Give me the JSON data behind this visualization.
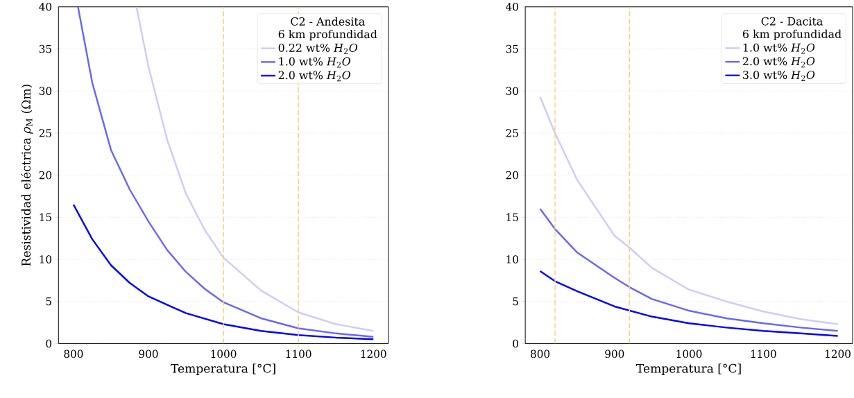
{
  "chart_data": [
    {
      "type": "line",
      "xlabel": "Temperatura [°C]",
      "ylabel": "Resistividad eléctrica *ρ*$_{M}$ (Ωm)",
      "legend_title": "C2 - Andesita\n6 km profundidad",
      "legend": "top right",
      "grid": "y",
      "xlim": [
        780,
        1220
      ],
      "ylim": [
        0,
        40
      ],
      "xticks": [
        800,
        900,
        1000,
        1100,
        1200
      ],
      "yticks": [
        0,
        5,
        10,
        15,
        20,
        25,
        30,
        35,
        40
      ],
      "ref_lines": [
        {
          "axis": "x",
          "value": 1000,
          "color": "#ffcf7a",
          "line_style": "dashed"
        },
        {
          "axis": "x",
          "value": 1100,
          "color": "#ffcf7a",
          "line_style": "dashed"
        }
      ],
      "series": [
        {
          "name": "0.22 wt% *H*$_{2}$*O*",
          "color": "#ccccff",
          "x": [
            884,
            900,
            925,
            950,
            975,
            1000,
            1050,
            1100,
            1150,
            1200
          ],
          "values": [
            40,
            32.9,
            24.2,
            17.8,
            13.5,
            10.2,
            6.3,
            3.7,
            2.3,
            1.5
          ]
        },
        {
          "name": "1.0 wt% *H*$_{2}$*O*",
          "color": "#6666ff",
          "x": [
            806,
            825,
            850,
            875,
            900,
            925,
            950,
            975,
            1000,
            1050,
            1100,
            1150,
            1200
          ],
          "values": [
            40,
            31,
            23,
            18.3,
            14.5,
            11.1,
            8.5,
            6.5,
            4.9,
            3.0,
            1.8,
            1.2,
            0.8
          ]
        },
        {
          "name": "2.0 wt% *H*$_{2}$*O*",
          "color": "#0000ff",
          "x": [
            800,
            825,
            850,
            875,
            900,
            950,
            1000,
            1050,
            1100,
            1150,
            1200
          ],
          "values": [
            16.5,
            12.4,
            9.3,
            7.2,
            5.6,
            3.6,
            2.3,
            1.5,
            1.0,
            0.7,
            0.5
          ]
        }
      ]
    },
    {
      "type": "line",
      "xlabel": "Temperatura [°C]",
      "legend_title": "C2 - Dacita\n6 km profundidad",
      "legend": "top right",
      "grid": "y",
      "xlim": [
        780,
        1220
      ],
      "ylim": [
        0,
        40
      ],
      "xticks": [
        800,
        900,
        1000,
        1100,
        1200
      ],
      "yticks": [
        0,
        5,
        10,
        15,
        20,
        25,
        30,
        35,
        40
      ],
      "ref_lines": [
        {
          "axis": "x",
          "value": 820,
          "color": "#ffcf7a",
          "line_style": "dashed"
        },
        {
          "axis": "x",
          "value": 920,
          "color": "#ffcf7a",
          "line_style": "dashed"
        }
      ],
      "series": [
        {
          "name": "1.0 wt% *H*$_{2}$*O*",
          "color": "#ccccff",
          "x": [
            800,
            820,
            850,
            900,
            920,
            950,
            1000,
            1050,
            1100,
            1150,
            1200
          ],
          "values": [
            29.3,
            25,
            19.4,
            12.8,
            11.4,
            9.0,
            6.4,
            5.0,
            3.8,
            2.9,
            2.3
          ]
        },
        {
          "name": "2.0 wt% *H*$_{2}$*O*",
          "color": "#6666ff",
          "x": [
            800,
            820,
            850,
            900,
            920,
            950,
            1000,
            1050,
            1100,
            1150,
            1200
          ],
          "values": [
            16.0,
            13.6,
            10.8,
            7.8,
            6.7,
            5.3,
            3.9,
            3.0,
            2.4,
            1.9,
            1.5
          ]
        },
        {
          "name": "3.0 wt% *H*$_{2}$*O*",
          "color": "#0000ff",
          "x": [
            800,
            820,
            850,
            900,
            950,
            1000,
            1050,
            1100,
            1150,
            1200
          ],
          "values": [
            8.6,
            7.4,
            6.2,
            4.4,
            3.2,
            2.4,
            1.9,
            1.5,
            1.2,
            0.9
          ]
        }
      ]
    }
  ]
}
